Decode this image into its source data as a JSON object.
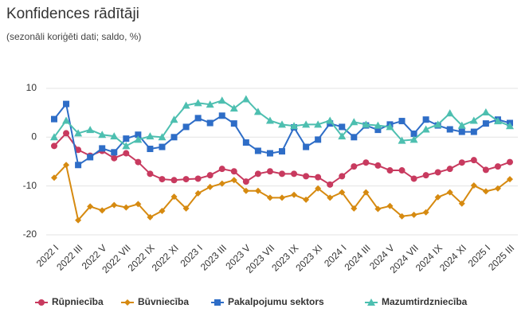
{
  "chart_data": {
    "type": "line",
    "title": "Konfidences rādītāji",
    "subtitle": "(sezonāli koriģēti dati; saldo, %)",
    "categories": [
      "2022 I",
      null,
      "2022 III",
      null,
      "2022 V",
      null,
      "2022 VII",
      null,
      "2022 IX",
      null,
      "2022 XI",
      null,
      "2023 I",
      null,
      "2023 III",
      null,
      "2023 V",
      null,
      "2023 VII",
      null,
      "2023 IX",
      null,
      "2023 XI",
      null,
      "2024 I",
      null,
      "2024 III",
      null,
      "2024 V",
      null,
      "2024 VII",
      null,
      "2024 IX",
      null,
      "2024 XI",
      null,
      "2025 I",
      null,
      "2025 III"
    ],
    "series": [
      {
        "name": "Rūpniecība",
        "color": "#c83a5f",
        "marker": "circle",
        "values": [
          -1.8,
          0.8,
          -2.6,
          -3.8,
          -2.8,
          -4.3,
          -3.3,
          -5.1,
          -7.5,
          -8.6,
          -8.8,
          -8.6,
          -8.5,
          -7.8,
          -6.5,
          -7,
          -9.1,
          -7.5,
          -7,
          -7.5,
          -7.5,
          -8,
          -8.2,
          -9.7,
          -8,
          -6,
          -5.2,
          -5.8,
          -6.8,
          -6.8,
          -8.5,
          -7.8,
          -7.2,
          -6.5,
          -5.2,
          -4.7,
          -6.7,
          -6,
          -5.1
        ]
      },
      {
        "name": "Būvniecība",
        "color": "#d68a10",
        "marker": "diamond",
        "values": [
          -8.3,
          -5.7,
          -17,
          -14.2,
          -15,
          -13.9,
          -14.4,
          -13.7,
          -16.4,
          -15.1,
          -12.2,
          -14.6,
          -11.5,
          -10.2,
          -9.5,
          -8.8,
          -11,
          -11,
          -12.4,
          -12.4,
          -11.8,
          -12.8,
          -10.5,
          -12.4,
          -11.3,
          -14.6,
          -11.3,
          -14.7,
          -14.1,
          -16.2,
          -15.9,
          -15.4,
          -12.3,
          -11.3,
          -13.6,
          -9.9,
          -11.1,
          -10.5,
          -8.6
        ]
      },
      {
        "name": "Pakalpojumu sektors",
        "color": "#2e6dc7",
        "marker": "square",
        "values": [
          3.7,
          6.8,
          -5.7,
          -4.1,
          -2.3,
          -3.1,
          -0.3,
          0.5,
          -2.4,
          -2,
          0,
          2.1,
          3.9,
          2.9,
          4.4,
          2.8,
          -1.1,
          -2.8,
          -3.3,
          -2.9,
          2,
          -2,
          -0.5,
          2.8,
          2.1,
          0,
          2.4,
          1.5,
          2.6,
          3.3,
          0.7,
          3.6,
          2.4,
          1.6,
          1.1,
          1.1,
          2.8,
          3.6,
          2.9
        ]
      },
      {
        "name": "Mazumtirdzniecība",
        "color": "#4dbfb0",
        "marker": "triangle",
        "values": [
          0,
          3.4,
          0.8,
          1.5,
          0.5,
          0.2,
          -1.8,
          -0.5,
          0.2,
          0,
          3.6,
          6.5,
          7,
          6.7,
          7.5,
          5.9,
          7.8,
          5.2,
          3.4,
          2.6,
          2.3,
          2.6,
          2.6,
          3.4,
          0.2,
          3.1,
          2.6,
          2.4,
          2.1,
          -0.7,
          -0.5,
          1.6,
          2.6,
          4.9,
          2.4,
          3.4,
          5.1,
          3.3,
          2.3
        ]
      }
    ],
    "ylim": [
      -21.5,
      12
    ],
    "yticks": [
      -20,
      -10,
      0,
      10
    ],
    "grid": true
  }
}
